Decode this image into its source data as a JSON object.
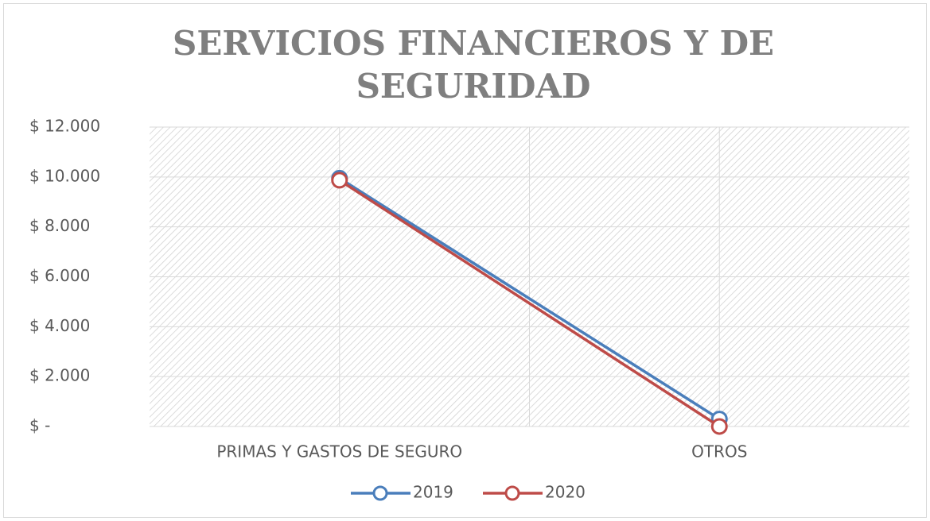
{
  "chart_data": {
    "type": "line",
    "title": "SERVICIOS FINANCIEROS Y DE SEGURIDAD",
    "categories": [
      "PRIMAS Y GASTOS DE SEGURO",
      "OTROS"
    ],
    "series": [
      {
        "name": "2019",
        "color": "#4a7ebb",
        "values": [
          9950,
          300
        ]
      },
      {
        "name": "2020",
        "color": "#be4b48",
        "values": [
          9870,
          0
        ]
      }
    ],
    "ylim": [
      0,
      12000
    ],
    "yticks": [
      {
        "value": 0,
        "label": "$ -"
      },
      {
        "value": 2000,
        "label": "$ 2.000"
      },
      {
        "value": 4000,
        "label": "$ 4.000"
      },
      {
        "value": 6000,
        "label": "$ 6.000"
      },
      {
        "value": 8000,
        "label": "$ 8.000"
      },
      {
        "value": 10000,
        "label": "$ 10.000"
      },
      {
        "value": 12000,
        "label": "$ 12.000"
      }
    ],
    "grid": true,
    "legend": "bottom"
  }
}
